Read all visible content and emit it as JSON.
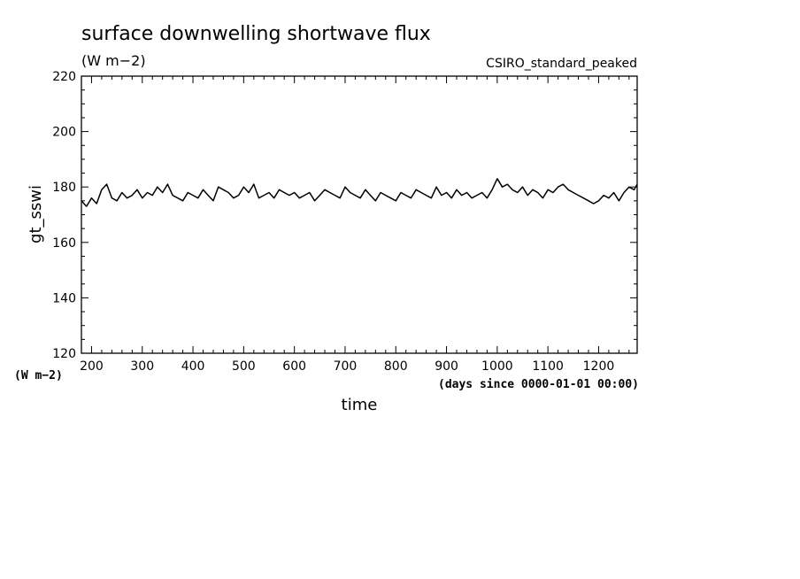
{
  "chart_data": {
    "type": "line",
    "title": "surface downwelling shortwave flux",
    "units_label": "(W m−2)",
    "dataset_label": "CSIRO_standard_peaked",
    "xlabel": "time",
    "x_units": "(days since 0000-01-01 00:00)",
    "ylabel": "gt_sswi",
    "y_units": "(W m−2)",
    "xlim": [
      180,
      1276
    ],
    "ylim": [
      120,
      220
    ],
    "x_ticks": [
      200,
      300,
      400,
      500,
      600,
      700,
      800,
      900,
      1000,
      1100,
      1200
    ],
    "y_ticks": [
      120,
      140,
      160,
      180,
      200,
      220
    ],
    "series": [
      {
        "x": [
          180,
          190,
          200,
          210,
          220,
          230,
          240,
          250,
          260,
          270,
          280,
          290,
          300,
          310,
          320,
          330,
          340,
          350,
          360,
          370,
          380,
          390,
          400,
          410,
          420,
          430,
          440,
          450,
          460,
          470,
          480,
          490,
          500,
          510,
          520,
          530,
          540,
          550,
          560,
          570,
          580,
          590,
          600,
          610,
          620,
          630,
          640,
          650,
          660,
          670,
          680,
          690,
          700,
          710,
          720,
          730,
          740,
          750,
          760,
          770,
          780,
          790,
          800,
          810,
          820,
          830,
          840,
          850,
          860,
          870,
          880,
          890,
          900,
          910,
          920,
          930,
          940,
          950,
          960,
          970,
          980,
          990,
          1000,
          1010,
          1020,
          1030,
          1040,
          1050,
          1060,
          1070,
          1080,
          1090,
          1100,
          1110,
          1120,
          1130,
          1140,
          1150,
          1160,
          1170,
          1180,
          1190,
          1200,
          1210,
          1220,
          1230,
          1240,
          1250,
          1260,
          1270,
          1276
        ],
        "y": [
          175,
          173,
          176,
          174,
          179,
          181,
          176,
          175,
          178,
          176,
          177,
          179,
          176,
          178,
          177,
          180,
          178,
          181,
          177,
          176,
          175,
          178,
          177,
          176,
          179,
          177,
          175,
          180,
          179,
          178,
          176,
          177,
          180,
          178,
          181,
          176,
          177,
          178,
          176,
          179,
          178,
          177,
          178,
          176,
          177,
          178,
          175,
          177,
          179,
          178,
          177,
          176,
          180,
          178,
          177,
          176,
          179,
          177,
          175,
          178,
          177,
          176,
          175,
          178,
          177,
          176,
          179,
          178,
          177,
          176,
          180,
          177,
          178,
          176,
          179,
          177,
          178,
          176,
          177,
          178,
          176,
          179,
          183,
          180,
          181,
          179,
          178,
          180,
          177,
          179,
          178,
          176,
          179,
          178,
          180,
          181,
          179,
          178,
          177,
          176,
          175,
          174,
          175,
          177,
          176,
          178,
          175,
          178,
          180,
          179,
          181
        ]
      }
    ]
  }
}
